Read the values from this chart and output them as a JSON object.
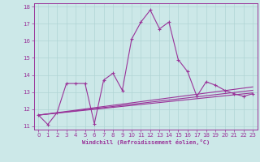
{
  "xlabel": "Windchill (Refroidissement éolien,°C)",
  "bg_color": "#cce8e8",
  "grid_color": "#b0d4d4",
  "line_color": "#993399",
  "xlim": [
    -0.5,
    23.5
  ],
  "ylim": [
    10.8,
    18.2
  ],
  "yticks": [
    11,
    12,
    13,
    14,
    15,
    16,
    17,
    18
  ],
  "xticks": [
    0,
    1,
    2,
    3,
    4,
    5,
    6,
    7,
    8,
    9,
    10,
    11,
    12,
    13,
    14,
    15,
    16,
    17,
    18,
    19,
    20,
    21,
    22,
    23
  ],
  "main_x": [
    0,
    1,
    2,
    3,
    4,
    5,
    6,
    7,
    8,
    9,
    10,
    11,
    12,
    13,
    14,
    15,
    16,
    17,
    18,
    19,
    20,
    21,
    22,
    23
  ],
  "main_y": [
    11.65,
    11.1,
    11.8,
    13.5,
    13.5,
    13.5,
    11.15,
    13.7,
    14.1,
    13.1,
    16.1,
    17.1,
    17.8,
    16.7,
    17.1,
    14.9,
    14.2,
    12.75,
    13.6,
    13.4,
    13.1,
    12.9,
    12.75,
    12.9
  ],
  "line1_x": [
    0,
    23
  ],
  "line1_y": [
    11.65,
    13.3
  ],
  "line2_x": [
    0,
    23
  ],
  "line2_y": [
    11.65,
    13.1
  ],
  "line3_x": [
    0,
    23
  ],
  "line3_y": [
    11.65,
    12.95
  ]
}
